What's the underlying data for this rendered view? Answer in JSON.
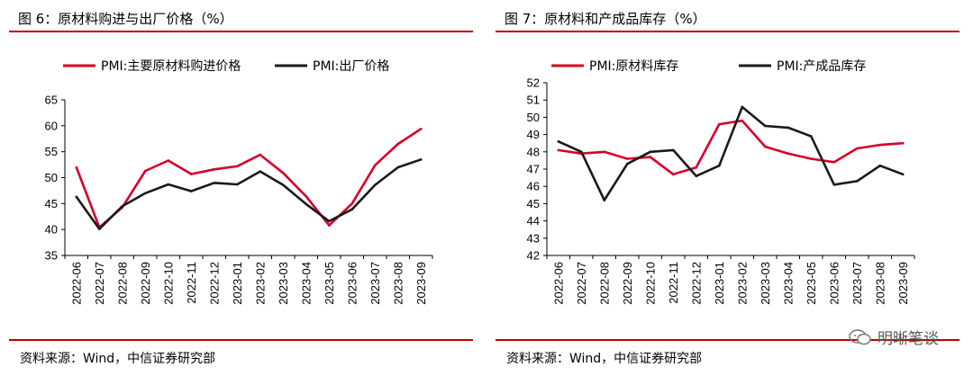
{
  "charts": [
    {
      "title": "图 6：原材料购进与出厂价格（%）",
      "source": "资料来源：Wind，中信证券研究部",
      "chart_data": {
        "type": "line",
        "categories": [
          "2022-06",
          "2022-07",
          "2022-08",
          "2022-09",
          "2022-10",
          "2022-11",
          "2022-12",
          "2023-01",
          "2023-02",
          "2023-03",
          "2023-04",
          "2023-05",
          "2023-06",
          "2023-07",
          "2023-08",
          "2023-09"
        ],
        "series": [
          {
            "name": "PMI:主要原材料购进价格",
            "color": "#d7002a",
            "values": [
              52.0,
              40.4,
              44.3,
              51.3,
              53.3,
              50.7,
              51.6,
              52.2,
              54.4,
              50.9,
              46.4,
              40.8,
              45.0,
              52.4,
              56.5,
              59.4
            ]
          },
          {
            "name": "PMI:出厂价格",
            "color": "#1a1a1a",
            "values": [
              46.3,
              40.1,
              44.5,
              47.0,
              48.7,
              47.4,
              49.0,
              48.7,
              51.2,
              48.6,
              44.9,
              41.6,
              43.9,
              48.6,
              52.0,
              53.5
            ]
          }
        ],
        "ylim": [
          35,
          65
        ],
        "yticks": [
          35,
          40,
          45,
          50,
          55,
          60,
          65
        ],
        "legend": "top"
      }
    },
    {
      "title": "图 7：原材料和产成品库存（%）",
      "source": "资料来源：Wind，中信证券研究部",
      "chart_data": {
        "type": "line",
        "categories": [
          "2022-06",
          "2022-07",
          "2022-08",
          "2022-09",
          "2022-10",
          "2022-11",
          "2022-12",
          "2023-01",
          "2023-02",
          "2023-03",
          "2023-04",
          "2023-05",
          "2023-06",
          "2023-07",
          "2023-08",
          "2023-09"
        ],
        "series": [
          {
            "name": "PMI:原材料库存",
            "color": "#d7002a",
            "values": [
              48.1,
              47.9,
              48.0,
              47.6,
              47.7,
              46.7,
              47.1,
              49.6,
              49.8,
              48.3,
              47.9,
              47.6,
              47.4,
              48.2,
              48.4,
              48.5
            ]
          },
          {
            "name": "PMI:产成品库存",
            "color": "#1a1a1a",
            "values": [
              48.6,
              48.0,
              45.2,
              47.3,
              48.0,
              48.1,
              46.6,
              47.2,
              50.6,
              49.5,
              49.4,
              48.9,
              46.1,
              46.3,
              47.2,
              46.7
            ]
          }
        ],
        "ylim": [
          42,
          52
        ],
        "yticks": [
          42,
          43,
          44,
          45,
          46,
          47,
          48,
          49,
          50,
          51,
          52
        ],
        "legend": "top"
      }
    }
  ],
  "watermark": "明晰笔谈"
}
